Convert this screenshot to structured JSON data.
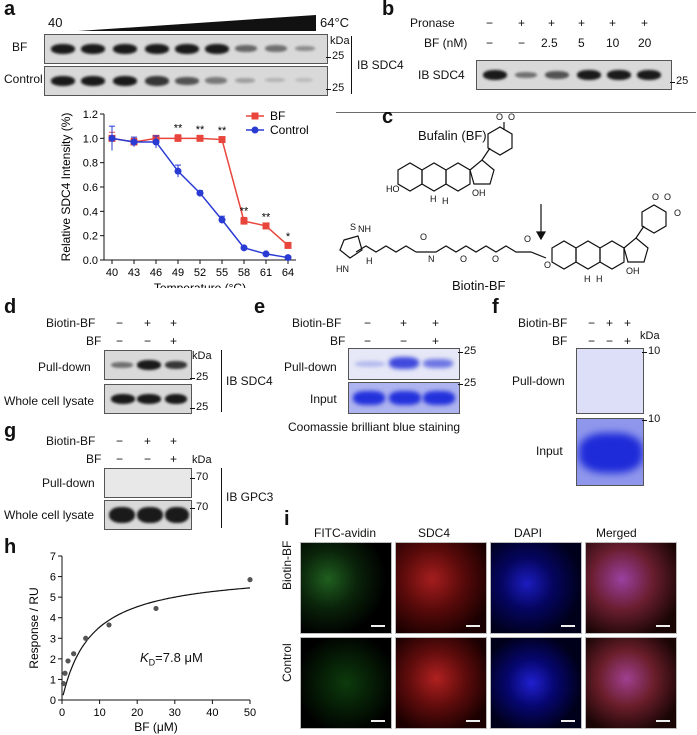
{
  "panels": {
    "a": {
      "label": "a",
      "temp_start": "40",
      "temp_end": "64°C",
      "rows": [
        "BF",
        "Control"
      ],
      "kda": "kDa",
      "marker_25": "25",
      "ib": "IB SDC4"
    },
    "b": {
      "label": "b",
      "row_pronase": "Pronase",
      "row_bf": "BF (nM)",
      "pronase_values": [
        "−",
        "+",
        "+",
        "+",
        "+",
        "+"
      ],
      "bf_values": [
        "−",
        "−",
        "2.5",
        "5",
        "10",
        "20"
      ],
      "ib": "IB SDC4",
      "marker_25": "25"
    },
    "c": {
      "label": "c",
      "bufalin": "Bufalin (BF)",
      "biotin_bf": "Biotin-BF",
      "atom_labels": [
        "O",
        "O",
        "HO",
        "H",
        "H",
        "OH",
        "O",
        "O",
        "HN",
        "NH",
        "H",
        "N",
        "O",
        "O",
        "O",
        "S",
        "O",
        "H",
        "H",
        "OH",
        "O",
        "O"
      ]
    },
    "d": {
      "label": "d",
      "row_biotin": "Biotin-BF",
      "row_bf": "BF",
      "biotin_values": [
        "−",
        "+",
        "+"
      ],
      "bf_values": [
        "−",
        "−",
        "+"
      ],
      "kda": "kDa",
      "rows": [
        "Pull-down",
        "Whole cell lysate"
      ],
      "markers": [
        "25",
        "25"
      ],
      "ib": "IB SDC4"
    },
    "e": {
      "label": "e",
      "row_biotin": "Biotin-BF",
      "row_bf": "BF",
      "biotin_values": [
        "−",
        "+",
        "+"
      ],
      "bf_values": [
        "−",
        "−",
        "+"
      ],
      "rows": [
        "Pull-down",
        "Input"
      ],
      "markers": [
        "25",
        "25"
      ],
      "caption": "Coomassie brilliant blue staining"
    },
    "f": {
      "label": "f",
      "row_biotin": "Biotin-BF",
      "row_bf": "BF",
      "biotin_values": [
        "−",
        "+",
        "+"
      ],
      "bf_values": [
        "−",
        "−",
        "+"
      ],
      "kda": "kDa",
      "rows": [
        "Pull-down",
        "Input"
      ],
      "markers": [
        "10",
        "10"
      ]
    },
    "g": {
      "label": "g",
      "row_biotin": "Biotin-BF",
      "row_bf": "BF",
      "biotin_values": [
        "−",
        "+",
        "+"
      ],
      "bf_values": [
        "−",
        "−",
        "+"
      ],
      "kda": "kDa",
      "rows": [
        "Pull-down",
        "Whole cell lysate"
      ],
      "markers": [
        "70",
        "70"
      ],
      "ib": "IB GPC3"
    },
    "h": {
      "label": "h",
      "kd_symbol": "K",
      "kd_sub": "D",
      "kd_value": "=7.8 μM"
    },
    "i": {
      "label": "i",
      "columns": [
        "FITC-avidin",
        "SDC4",
        "DAPI",
        "Merged"
      ],
      "rows": [
        "Biotin-BF",
        "Control"
      ]
    }
  },
  "chart_data": [
    {
      "type": "line",
      "xlabel": "Temperature (°C)",
      "ylabel": "Relative SDC4 Intensity (%)",
      "categories": [
        "40",
        "43",
        "46",
        "49",
        "52",
        "55",
        "58",
        "61",
        "64"
      ],
      "ylim": [
        0.0,
        1.2
      ],
      "yticks": [
        "0.0",
        "0.2",
        "0.4",
        "0.6",
        "0.8",
        "1.0",
        "1.2"
      ],
      "legend_position": "top-right",
      "series": [
        {
          "name": "BF",
          "color": "#e8453c",
          "marker": "square",
          "values": [
            1.0,
            0.97,
            1.0,
            1.0,
            1.0,
            0.99,
            0.32,
            0.28,
            0.12
          ],
          "errors": [
            0.05,
            0.03,
            0.02,
            0.03,
            0.02,
            0.02,
            0.03,
            0.02,
            0.02
          ]
        },
        {
          "name": "Control",
          "color": "#2a3bd4",
          "marker": "circle",
          "values": [
            1.0,
            0.97,
            0.97,
            0.73,
            0.55,
            0.33,
            0.1,
            0.05,
            0.02
          ],
          "errors": [
            0.1,
            0.04,
            0.05,
            0.05,
            0.02,
            0.03,
            0.01,
            0.01,
            0.01
          ]
        }
      ],
      "significance": [
        "",
        "",
        "",
        "**",
        "**",
        "**",
        "**",
        "**",
        "*"
      ]
    },
    {
      "type": "scatter",
      "xlabel": "BF (μM)",
      "ylabel": "Response / RU",
      "xlim": [
        0,
        50
      ],
      "xticks": [
        "0",
        "10",
        "20",
        "30",
        "40",
        "50"
      ],
      "ylim": [
        0,
        7
      ],
      "yticks": [
        "0",
        "1",
        "2",
        "3",
        "4",
        "5",
        "6",
        "7"
      ],
      "points": [
        {
          "x": 0.4,
          "y": 0.8
        },
        {
          "x": 0.8,
          "y": 1.3
        },
        {
          "x": 1.6,
          "y": 1.9
        },
        {
          "x": 3.1,
          "y": 2.25
        },
        {
          "x": 6.3,
          "y": 3.0
        },
        {
          "x": 12.5,
          "y": 3.65
        },
        {
          "x": 25,
          "y": 4.45
        },
        {
          "x": 50,
          "y": 5.85
        }
      ],
      "fit": {
        "model": "steady-state affinity",
        "Kd": 7.8,
        "Rmax": 6.3,
        "offset": 0.0
      }
    }
  ]
}
